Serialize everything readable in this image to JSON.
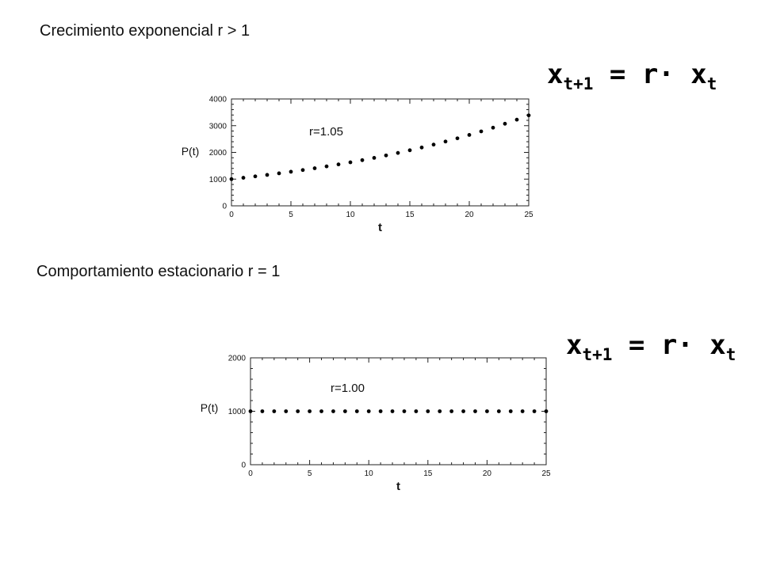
{
  "captions": {
    "exponential": "Crecimiento exponencial r > 1",
    "stationary": "Comportamiento estacionario r = 1"
  },
  "formula": {
    "lhs_var": "x",
    "lhs_sub": "t+1",
    "middle": " = r· ",
    "rhs_var": "x",
    "rhs_sub": "t"
  },
  "chart_data": [
    {
      "type": "scatter",
      "title": "",
      "xlabel": "t",
      "ylabel": "P(t)",
      "annotation": "r=1.05",
      "xlim": [
        0,
        25
      ],
      "ylim": [
        0,
        4000
      ],
      "xticks": [
        0,
        5,
        10,
        15,
        20,
        25
      ],
      "yticks": [
        0,
        1000,
        2000,
        3000,
        4000
      ],
      "grid": false,
      "x": [
        0,
        1,
        2,
        3,
        4,
        5,
        6,
        7,
        8,
        9,
        10,
        11,
        12,
        13,
        14,
        15,
        16,
        17,
        18,
        19,
        20,
        21,
        22,
        23,
        24,
        25
      ],
      "y": [
        1000,
        1050,
        1103,
        1158,
        1216,
        1276,
        1340,
        1407,
        1477,
        1551,
        1629,
        1710,
        1796,
        1886,
        1980,
        2079,
        2183,
        2292,
        2407,
        2527,
        2653,
        2786,
        2925,
        3072,
        3225,
        3386
      ]
    },
    {
      "type": "scatter",
      "title": "",
      "xlabel": "t",
      "ylabel": "P(t)",
      "annotation": "r=1.00",
      "xlim": [
        0,
        25
      ],
      "ylim": [
        0,
        2000
      ],
      "xticks": [
        0,
        5,
        10,
        15,
        20,
        25
      ],
      "yticks": [
        0,
        1000,
        2000
      ],
      "grid": false,
      "x": [
        0,
        1,
        2,
        3,
        4,
        5,
        6,
        7,
        8,
        9,
        10,
        11,
        12,
        13,
        14,
        15,
        16,
        17,
        18,
        19,
        20,
        21,
        22,
        23,
        24,
        25
      ],
      "y": [
        1000,
        1000,
        1000,
        1000,
        1000,
        1000,
        1000,
        1000,
        1000,
        1000,
        1000,
        1000,
        1000,
        1000,
        1000,
        1000,
        1000,
        1000,
        1000,
        1000,
        1000,
        1000,
        1000,
        1000,
        1000,
        1000
      ]
    }
  ]
}
